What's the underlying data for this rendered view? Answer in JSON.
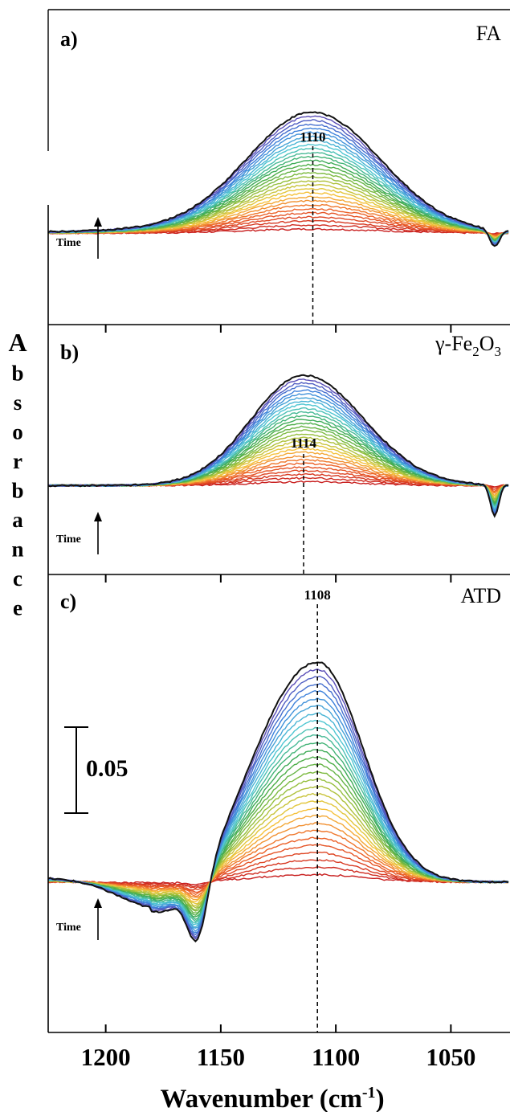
{
  "chart_data": {
    "type": "line",
    "ylabel": "Absorbance",
    "xlabel": "Wavenumber (cm-1)",
    "xlabel_main": "Wavenumber (cm",
    "xlabel_sup": "-1",
    "xlabel_close": ")",
    "x_reversed": true,
    "xlim": [
      1225,
      1025
    ],
    "x_ticks": [
      1200,
      1150,
      1100,
      1050
    ],
    "time_label": "Time",
    "scale_bar": {
      "label": "0.05",
      "value": 0.05
    },
    "series_count": 30,
    "color_order": "red to orange to yellow to green to cyan to blue to violet to black (increasing time)",
    "panels": [
      {
        "label": "a)",
        "sample": "FA",
        "peak_label": "1110",
        "peak_position": 1110,
        "ylim": [
          -0.045,
          0.11
        ],
        "peak_final": 0.058,
        "baseline": 0.0,
        "dip_position": 1031,
        "dip_depth": 0.008
      },
      {
        "label": "b)",
        "sample_main": "γ-Fe",
        "sample_sub1": "2",
        "sample_mid": "O",
        "sample_sub2": "3",
        "sample": "γ-Fe2O3",
        "peak_label": "1114",
        "peak_position": 1114,
        "ylim": [
          -0.042,
          0.076
        ],
        "peak_final": 0.052,
        "baseline": 0.0,
        "dip_position": 1031,
        "dip_depth": 0.015
      },
      {
        "label": "c)",
        "sample": "ATD",
        "peak_label": "1108",
        "peak_position": 1108,
        "ylim": [
          -0.048,
          0.141
        ],
        "peak_final": 0.101,
        "baseline": 0.0,
        "dip_position": 1160,
        "dip_depth": 0.027
      }
    ]
  }
}
